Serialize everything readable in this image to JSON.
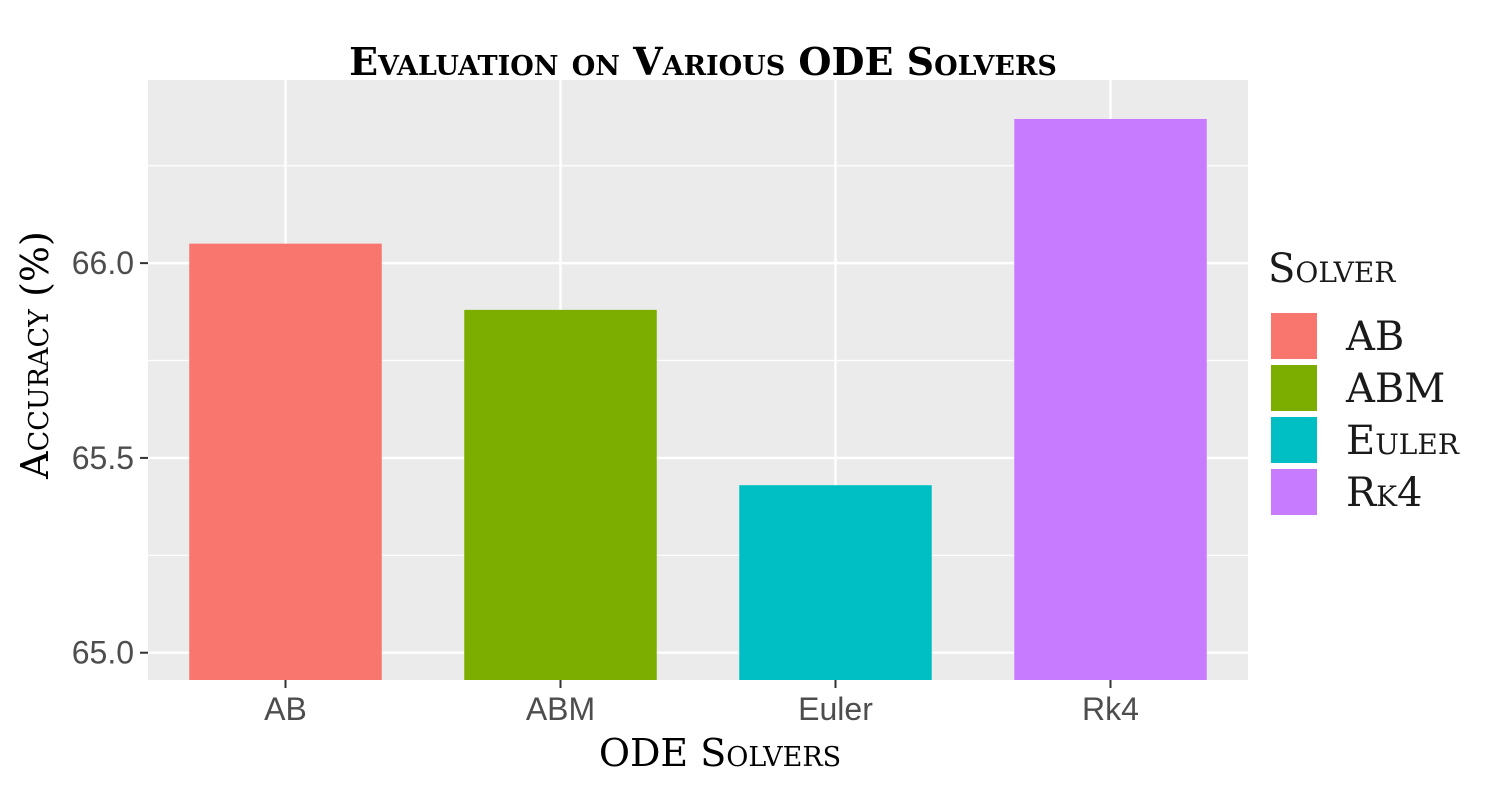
{
  "chart_data": {
    "type": "bar",
    "title": "Evaluation on Various ODE Solvers",
    "xlabel": "ODE Solvers",
    "ylabel": "Accuracy (%)",
    "categories": [
      "AB",
      "ABM",
      "Euler",
      "Rk4"
    ],
    "values": [
      66.05,
      65.88,
      65.43,
      66.37
    ],
    "colors": [
      "#F8766D",
      "#7CAE00",
      "#00BFC4",
      "#C77CFF"
    ],
    "ylim": [
      64.93,
      66.47
    ],
    "yticks": [
      65.0,
      65.5,
      66.0
    ],
    "ytick_labels": [
      "65.0",
      "65.5",
      "66.0"
    ],
    "grid": true,
    "panel_background": "#EBEBEB",
    "legend": {
      "title": "Solver",
      "position": "right",
      "entries": [
        "AB",
        "ABM",
        "Euler",
        "Rk4"
      ]
    }
  }
}
